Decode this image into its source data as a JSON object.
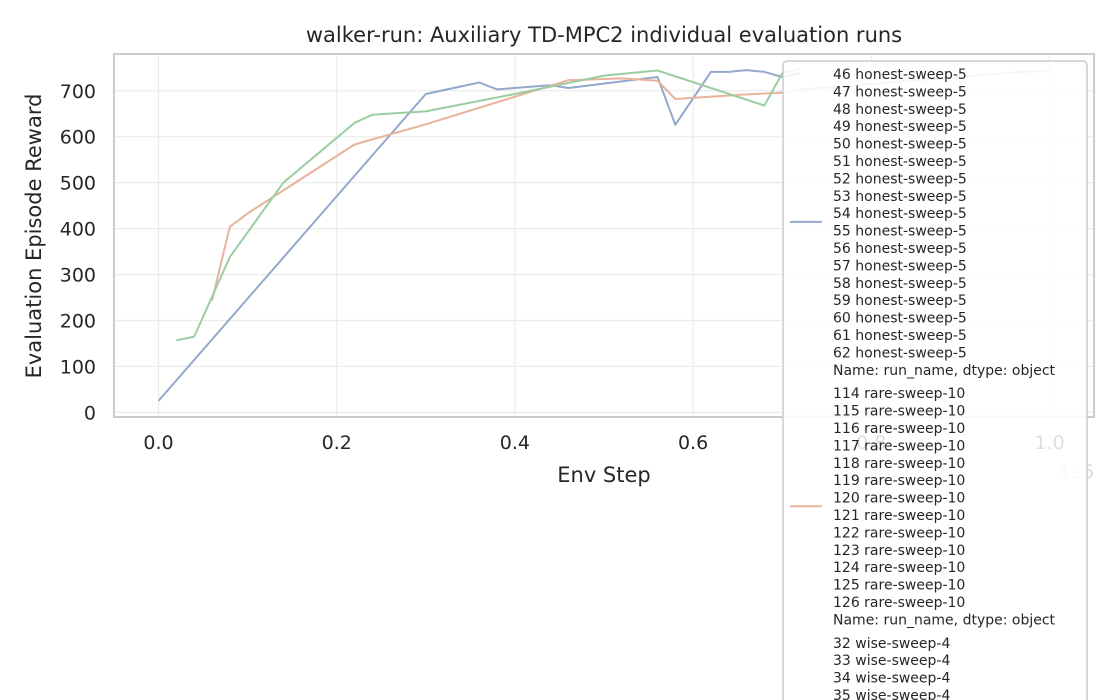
{
  "chart_data": {
    "type": "line",
    "title": "walker-run: Auxiliary TD-MPC2 individual evaluation runs",
    "xlabel": "Env Step",
    "ylabel": "Evaluation Episode Reward",
    "x_offset_label": "1e6",
    "xlim": [
      -0.05,
      1.05
    ],
    "ylim": [
      -10,
      780
    ],
    "xticks": [
      0.0,
      0.2,
      0.4,
      0.6,
      0.8,
      1.0
    ],
    "xtick_labels": [
      "0.0",
      "0.2",
      "0.4",
      "0.6",
      "0.8",
      "1.0"
    ],
    "yticks": [
      0,
      100,
      200,
      300,
      400,
      500,
      600,
      700
    ],
    "ytick_labels": [
      "0",
      "100",
      "200",
      "300",
      "400",
      "500",
      "600",
      "700"
    ],
    "grid": true,
    "legend_position": "right",
    "series": [
      {
        "color": "#92a8cc",
        "x": [
          0.0,
          0.3,
          0.36,
          0.38,
          0.44,
          0.46,
          0.56,
          0.58,
          0.62,
          0.64,
          0.66,
          0.68,
          0.7,
          0.72
        ],
        "y": [
          25,
          693,
          718,
          703,
          712,
          706,
          730,
          626,
          741,
          741,
          745,
          741,
          730,
          738
        ]
      },
      {
        "color": "#e8b39a",
        "x": [
          0.06,
          0.08,
          0.1,
          0.22,
          0.3,
          0.46,
          0.52,
          0.56,
          0.58,
          0.66,
          0.7,
          0.72,
          0.96,
          1.0
        ],
        "y": [
          243,
          404,
          433,
          583,
          627,
          723,
          727,
          722,
          682,
          692,
          696,
          702,
          740,
          744
        ]
      },
      {
        "color": "#9ccca2",
        "x": [
          0.02,
          0.04,
          0.08,
          0.14,
          0.22,
          0.24,
          0.3,
          0.4,
          0.5,
          0.56,
          0.68,
          0.7,
          0.72
        ],
        "y": [
          157,
          165,
          338,
          500,
          630,
          648,
          655,
          693,
          733,
          744,
          668,
          738,
          748
        ]
      }
    ],
    "legend": [
      {
        "color": "#92a8cc",
        "lines": [
          "46    honest-sweep-5",
          "47    honest-sweep-5",
          "48    honest-sweep-5",
          "49    honest-sweep-5",
          "50    honest-sweep-5",
          "51    honest-sweep-5",
          "52    honest-sweep-5",
          "53    honest-sweep-5",
          "54    honest-sweep-5",
          "55    honest-sweep-5",
          "56    honest-sweep-5",
          "57    honest-sweep-5",
          "58    honest-sweep-5",
          "59    honest-sweep-5",
          "60    honest-sweep-5",
          "61    honest-sweep-5",
          "62    honest-sweep-5",
          "Name: run_name, dtype: object"
        ]
      },
      {
        "color": "#e8b39a",
        "lines": [
          "114    rare-sweep-10",
          "115    rare-sweep-10",
          "116    rare-sweep-10",
          "117    rare-sweep-10",
          "118    rare-sweep-10",
          "119    rare-sweep-10",
          "120    rare-sweep-10",
          "121    rare-sweep-10",
          "122    rare-sweep-10",
          "123    rare-sweep-10",
          "124    rare-sweep-10",
          "125    rare-sweep-10",
          "126    rare-sweep-10",
          "Name: run_name, dtype: object"
        ]
      },
      {
        "color": "#9ccca2",
        "lines": [
          "32    wise-sweep-4",
          "33    wise-sweep-4",
          "34    wise-sweep-4",
          "35    wise-sweep-4"
        ]
      }
    ]
  }
}
